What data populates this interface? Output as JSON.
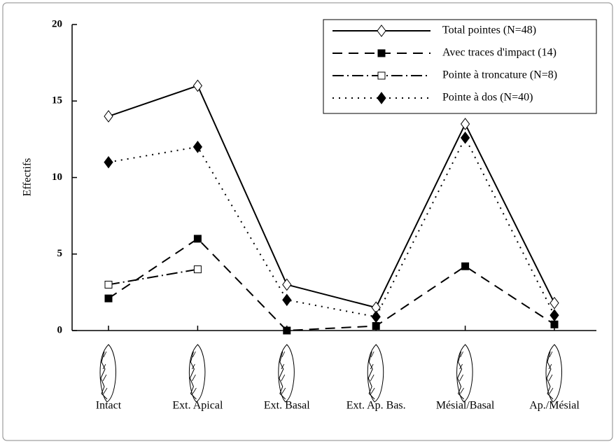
{
  "chart_data": {
    "type": "line",
    "y_label": "Effectifs",
    "categories": [
      "Intact",
      "Ext. Apical",
      "Ext. Basal",
      "Ext. Ap. Bas.",
      "Mésial/Basal",
      "Ap./Mésial"
    ],
    "ylim": [
      0,
      20
    ],
    "yticks": [
      0,
      5,
      10,
      15,
      20
    ],
    "legend": "top-right",
    "series": [
      {
        "name": "Total pointes (N=48)",
        "color": "#000000",
        "dash": "",
        "marker": "diamond",
        "filled": false,
        "values": [
          14,
          16,
          3,
          1.5,
          13.5,
          1.8
        ]
      },
      {
        "name": "Avec traces d'impact (14)",
        "color": "#000000",
        "dash": "14 9",
        "marker": "square",
        "filled": true,
        "values": [
          2.1,
          6,
          0,
          0.3,
          4.2,
          0.4
        ]
      },
      {
        "name": "Pointe à troncature (N=8)",
        "color": "#000000",
        "dash": "16 5 2 5",
        "marker": "square",
        "filled": false,
        "values": [
          3,
          4,
          null,
          null,
          null,
          null
        ]
      },
      {
        "name": "Pointe à dos (N=40)",
        "color": "#000000",
        "dash": "2 7",
        "marker": "diamond",
        "filled": true,
        "values": [
          11,
          12,
          2,
          0.9,
          12.6,
          1
        ]
      }
    ]
  }
}
